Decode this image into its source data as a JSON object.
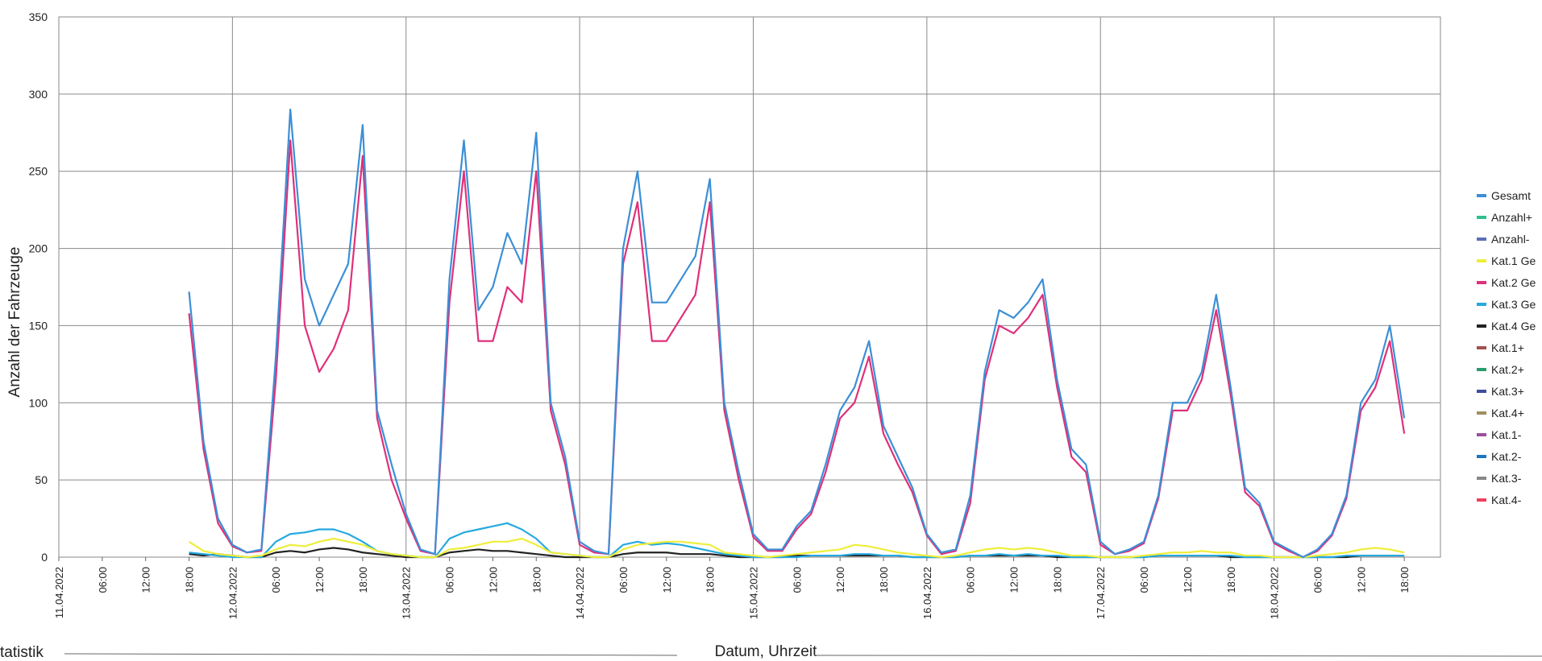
{
  "chart_data": {
    "type": "line",
    "ylabel": "Anzahl der Fahrzeuge",
    "xlabel": "Datum, Uhrzeit",
    "annotation": "tatistik",
    "grid": true,
    "legend": "right",
    "xlim": [
      0,
      191
    ],
    "ylim": [
      0,
      350
    ],
    "yticks": [
      0,
      50,
      100,
      150,
      200,
      250,
      300,
      350
    ],
    "xticks": [
      {
        "value": 0,
        "label": "11.04.2022"
      },
      {
        "value": 6,
        "label": "06:00"
      },
      {
        "value": 12,
        "label": "12:00"
      },
      {
        "value": 18,
        "label": "18:00"
      },
      {
        "value": 24,
        "label": "12.04.2022"
      },
      {
        "value": 30,
        "label": "06:00"
      },
      {
        "value": 36,
        "label": "12:00"
      },
      {
        "value": 42,
        "label": "18:00"
      },
      {
        "value": 48,
        "label": "13.04.2022"
      },
      {
        "value": 54,
        "label": "06:00"
      },
      {
        "value": 60,
        "label": "12:00"
      },
      {
        "value": 66,
        "label": "18:00"
      },
      {
        "value": 72,
        "label": "14.04.2022"
      },
      {
        "value": 78,
        "label": "06:00"
      },
      {
        "value": 84,
        "label": "12:00"
      },
      {
        "value": 90,
        "label": "18:00"
      },
      {
        "value": 96,
        "label": "15.04.2022"
      },
      {
        "value": 102,
        "label": "06:00"
      },
      {
        "value": 108,
        "label": "12:00"
      },
      {
        "value": 114,
        "label": "18:00"
      },
      {
        "value": 120,
        "label": "16.04.2022"
      },
      {
        "value": 126,
        "label": "06:00"
      },
      {
        "value": 132,
        "label": "12:00"
      },
      {
        "value": 138,
        "label": "18:00"
      },
      {
        "value": 144,
        "label": "17.04.2022"
      },
      {
        "value": 150,
        "label": "06:00"
      },
      {
        "value": 156,
        "label": "12:00"
      },
      {
        "value": 162,
        "label": "18:00"
      },
      {
        "value": 168,
        "label": "18.04.2022"
      },
      {
        "value": 174,
        "label": "06:00"
      },
      {
        "value": 180,
        "label": "12:00"
      },
      {
        "value": 186,
        "label": "18:00"
      }
    ],
    "x": [
      18,
      20,
      22,
      24,
      26,
      28,
      30,
      32,
      34,
      36,
      38,
      40,
      42,
      44,
      46,
      48,
      50,
      52,
      54,
      56,
      58,
      60,
      62,
      64,
      66,
      68,
      70,
      72,
      74,
      76,
      78,
      80,
      82,
      84,
      86,
      88,
      90,
      92,
      94,
      96,
      98,
      100,
      102,
      104,
      106,
      108,
      110,
      112,
      114,
      116,
      118,
      120,
      122,
      124,
      126,
      128,
      130,
      132,
      134,
      136,
      138,
      140,
      142,
      144,
      146,
      148,
      150,
      152,
      154,
      156,
      158,
      160,
      162,
      164,
      166,
      168,
      170,
      172,
      174,
      176,
      178,
      180,
      182,
      184,
      186
    ],
    "series": [
      {
        "name": "Gesamt",
        "color": "#3c8fd6",
        "values": [
          172,
          75,
          25,
          8,
          3,
          5,
          130,
          290,
          180,
          150,
          170,
          190,
          280,
          95,
          60,
          28,
          5,
          2,
          180,
          270,
          160,
          175,
          210,
          190,
          275,
          100,
          65,
          10,
          4,
          2,
          200,
          250,
          165,
          165,
          180,
          195,
          245,
          100,
          55,
          15,
          5,
          5,
          20,
          30,
          60,
          95,
          110,
          140,
          85,
          65,
          45,
          15,
          3,
          5,
          40,
          120,
          160,
          155,
          165,
          180,
          115,
          70,
          60,
          10,
          2,
          5,
          10,
          40,
          100,
          100,
          120,
          170,
          110,
          45,
          35,
          10,
          5,
          0,
          5,
          15,
          40,
          100,
          115,
          150,
          90
        ]
      },
      {
        "name": "Anzahl+",
        "color": "#2fbf8f"
      },
      {
        "name": "Anzahl-",
        "color": "#5b6fb5"
      },
      {
        "name": "Kat.1 Ge",
        "color": "#eeee3a",
        "values": [
          10,
          4,
          2,
          1,
          0,
          1,
          5,
          8,
          7,
          10,
          12,
          10,
          8,
          4,
          2,
          1,
          0,
          0,
          5,
          6,
          8,
          10,
          10,
          12,
          8,
          3,
          2,
          1,
          0,
          0,
          5,
          8,
          9,
          10,
          10,
          9,
          8,
          3,
          2,
          1,
          0,
          1,
          2,
          3,
          4,
          5,
          8,
          7,
          5,
          3,
          2,
          1,
          0,
          1,
          3,
          5,
          6,
          5,
          6,
          5,
          3,
          1,
          1,
          0,
          0,
          0,
          1,
          2,
          3,
          3,
          4,
          3,
          3,
          1,
          1,
          0,
          0,
          0,
          1,
          2,
          3,
          5,
          6,
          5,
          3
        ]
      },
      {
        "name": "Kat.2 Ge",
        "color": "#e0307a",
        "values": [
          158,
          70,
          22,
          7,
          3,
          4,
          115,
          270,
          150,
          120,
          135,
          160,
          260,
          90,
          50,
          25,
          4,
          2,
          165,
          250,
          140,
          140,
          175,
          165,
          250,
          95,
          60,
          8,
          3,
          2,
          190,
          230,
          140,
          140,
          155,
          170,
          230,
          95,
          50,
          13,
          4,
          4,
          18,
          28,
          55,
          90,
          100,
          130,
          80,
          60,
          42,
          14,
          2,
          4,
          35,
          115,
          150,
          145,
          155,
          170,
          110,
          65,
          55,
          8,
          2,
          4,
          9,
          38,
          95,
          95,
          115,
          160,
          105,
          42,
          33,
          9,
          4,
          0,
          4,
          14,
          38,
          95,
          110,
          140,
          80
        ]
      },
      {
        "name": "Kat.3 Ge",
        "color": "#25a9e0",
        "values": [
          3,
          2,
          1,
          0,
          0,
          0,
          10,
          15,
          16,
          18,
          18,
          15,
          10,
          4,
          2,
          1,
          0,
          0,
          12,
          16,
          18,
          20,
          22,
          18,
          12,
          3,
          2,
          1,
          0,
          0,
          8,
          10,
          8,
          9,
          8,
          6,
          4,
          2,
          1,
          0,
          0,
          0,
          0,
          1,
          1,
          1,
          2,
          2,
          1,
          1,
          0,
          0,
          0,
          0,
          1,
          1,
          2,
          1,
          2,
          1,
          1,
          0,
          0,
          0,
          0,
          0,
          0,
          1,
          1,
          1,
          1,
          1,
          1,
          0,
          0,
          0,
          0,
          0,
          0,
          0,
          1,
          1,
          1,
          1,
          1
        ]
      },
      {
        "name": "Kat.4 Ge",
        "color": "#222222",
        "values": [
          2,
          1,
          2,
          1,
          0,
          0,
          3,
          4,
          3,
          5,
          6,
          5,
          3,
          2,
          1,
          0,
          0,
          0,
          3,
          4,
          5,
          4,
          4,
          3,
          2,
          1,
          0,
          0,
          0,
          0,
          2,
          3,
          3,
          3,
          2,
          2,
          2,
          1,
          0,
          0,
          0,
          0,
          1,
          1,
          1,
          1,
          1,
          1,
          1,
          1,
          0,
          0,
          0,
          0,
          1,
          1,
          1,
          1,
          1,
          1,
          0,
          0,
          0,
          0,
          0,
          0,
          0,
          1,
          1,
          1,
          1,
          1,
          0,
          0,
          0,
          0,
          0,
          0,
          0,
          0,
          0,
          1,
          1,
          1,
          1
        ]
      },
      {
        "name": "Kat.1+",
        "color": "#a05050"
      },
      {
        "name": "Kat.2+",
        "color": "#2a9d6d"
      },
      {
        "name": "Kat.3+",
        "color": "#3d4f9a"
      },
      {
        "name": "Kat.4+",
        "color": "#a09060"
      },
      {
        "name": "Kat.1-",
        "color": "#9b4f9b"
      },
      {
        "name": "Kat.2-",
        "color": "#1b75c0"
      },
      {
        "name": "Kat.3-",
        "color": "#888888"
      },
      {
        "name": "Kat.4-",
        "color": "#f04060"
      }
    ]
  }
}
